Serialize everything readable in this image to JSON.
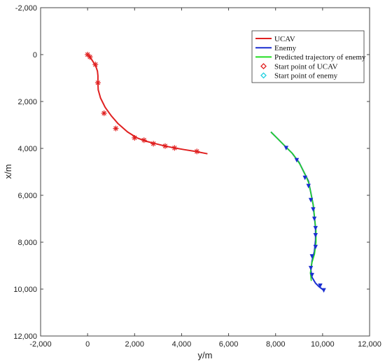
{
  "chart_data": {
    "type": "line",
    "xlabel": "y/m",
    "ylabel": "x/m",
    "xlim": [
      -2000,
      12000
    ],
    "ylim": [
      -2000,
      12000
    ],
    "y_axis_inverted": true,
    "grid": false,
    "legend_placement": "top-right",
    "x_ticks": [
      -2000,
      0,
      2000,
      4000,
      6000,
      8000,
      10000,
      12000
    ],
    "y_ticks": [
      -2000,
      0,
      2000,
      4000,
      6000,
      8000,
      10000,
      12000
    ],
    "x_tick_labels": [
      "-2,000",
      "0",
      "2,000",
      "4,000",
      "6,000",
      "8,000",
      "10,000",
      "12,000"
    ],
    "y_tick_labels": [
      "-2,000",
      "0",
      "2,000",
      "4,000",
      "6,000",
      "8,000",
      "10,000",
      "12,000"
    ],
    "legend": [
      {
        "label": "UCAV",
        "color": "#e02020",
        "kind": "line"
      },
      {
        "label": "Enemy",
        "color": "#1a2fd0",
        "kind": "line"
      },
      {
        "label": "Predicted trajectory of enemy",
        "color": "#22dd22",
        "kind": "line"
      },
      {
        "label": "Start point of UCAV",
        "color": "#e02020",
        "kind": "diamond"
      },
      {
        "label": "Start point of enemy",
        "color": "#20d0e0",
        "kind": "diamond"
      }
    ],
    "series": [
      {
        "name": "UCAV",
        "color": "#e02020",
        "points": [
          [
            0,
            0
          ],
          [
            100,
            100
          ],
          [
            220,
            280
          ],
          [
            350,
            500
          ],
          [
            420,
            700
          ],
          [
            440,
            900
          ],
          [
            440,
            1200
          ],
          [
            450,
            1500
          ],
          [
            550,
            1850
          ],
          [
            750,
            2250
          ],
          [
            1000,
            2600
          ],
          [
            1300,
            2950
          ],
          [
            1700,
            3300
          ],
          [
            2100,
            3550
          ],
          [
            2500,
            3700
          ],
          [
            2900,
            3800
          ],
          [
            3300,
            3900
          ],
          [
            3700,
            3980
          ],
          [
            4100,
            4050
          ],
          [
            4600,
            4130
          ],
          [
            5100,
            4230
          ]
        ],
        "markers": [
          [
            0,
            0
          ],
          [
            100,
            100
          ],
          [
            330,
            420
          ],
          [
            440,
            1200
          ],
          [
            700,
            2500
          ],
          [
            1200,
            3150
          ],
          [
            2000,
            3550
          ],
          [
            2400,
            3650
          ],
          [
            2800,
            3800
          ],
          [
            3300,
            3900
          ],
          [
            3700,
            3980
          ],
          [
            4650,
            4130
          ]
        ]
      },
      {
        "name": "Enemy",
        "color": "#1a2fd0",
        "points": [
          [
            7800,
            3300
          ],
          [
            8100,
            3600
          ],
          [
            8400,
            3900
          ],
          [
            8700,
            4200
          ],
          [
            9000,
            4600
          ],
          [
            9200,
            5000
          ],
          [
            9400,
            5400
          ],
          [
            9500,
            5900
          ],
          [
            9600,
            6400
          ],
          [
            9650,
            6900
          ],
          [
            9700,
            7400
          ],
          [
            9700,
            7900
          ],
          [
            9650,
            8400
          ],
          [
            9550,
            8800
          ],
          [
            9500,
            9200
          ],
          [
            9550,
            9500
          ],
          [
            9700,
            9750
          ],
          [
            9850,
            9900
          ],
          [
            10050,
            10050
          ]
        ],
        "markers": [
          [
            8450,
            3980
          ],
          [
            8900,
            4500
          ],
          [
            9250,
            5250
          ],
          [
            9400,
            5600
          ],
          [
            9500,
            6200
          ],
          [
            9600,
            6600
          ],
          [
            9650,
            7000
          ],
          [
            9700,
            7400
          ],
          [
            9700,
            7700
          ],
          [
            9700,
            8200
          ],
          [
            9550,
            8600
          ],
          [
            9500,
            9100
          ],
          [
            9550,
            9400
          ],
          [
            9900,
            9850
          ],
          [
            10050,
            10050
          ]
        ]
      },
      {
        "name": "Predicted trajectory of enemy",
        "color": "#22dd22",
        "points": [
          [
            7800,
            3300
          ],
          [
            8150,
            3650
          ],
          [
            8450,
            3950
          ],
          [
            8750,
            4250
          ],
          [
            9050,
            4700
          ],
          [
            9250,
            5100
          ],
          [
            9420,
            5500
          ],
          [
            9520,
            6000
          ],
          [
            9620,
            6500
          ],
          [
            9660,
            7000
          ],
          [
            9720,
            7500
          ],
          [
            9720,
            8000
          ],
          [
            9660,
            8500
          ],
          [
            9540,
            8900
          ],
          [
            9480,
            9300
          ],
          [
            9520,
            9650
          ]
        ]
      }
    ]
  }
}
